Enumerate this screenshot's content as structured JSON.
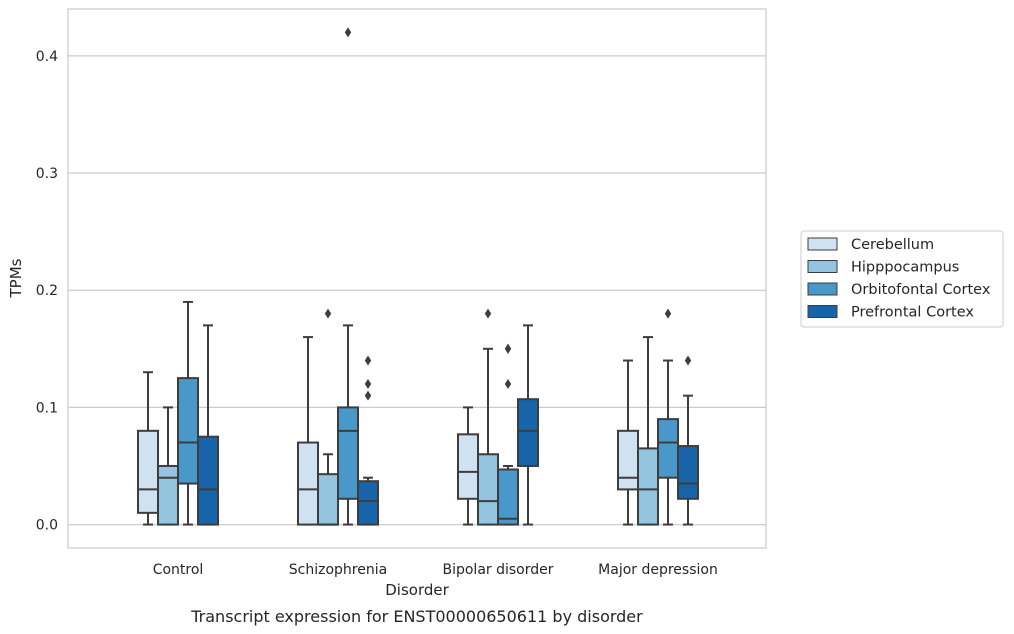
{
  "caption": "Transcript expression for ENST00000650611 by disorder",
  "chart_data": {
    "type": "box",
    "xlabel": "Disorder",
    "ylabel": "TPMs",
    "ylim": [
      -0.02,
      0.44
    ],
    "yticks": [
      0.0,
      0.1,
      0.2,
      0.3,
      0.4
    ],
    "ytick_labels": [
      "0.0",
      "0.1",
      "0.2",
      "0.3",
      "0.4"
    ],
    "grid": "horizontal",
    "legend_position": "right",
    "categories": [
      "Control",
      "Schizophrenia",
      "Bipolar disorder",
      "Major depression"
    ],
    "series": [
      {
        "name": "Cerebellum",
        "color": "#d0e1f2",
        "boxes": [
          {
            "whislo": 0.0,
            "q1": 0.01,
            "med": 0.03,
            "q3": 0.08,
            "whishi": 0.13,
            "fliers": []
          },
          {
            "whislo": 0.0,
            "q1": 0.0,
            "med": 0.03,
            "q3": 0.07,
            "whishi": 0.16,
            "fliers": []
          },
          {
            "whislo": 0.0,
            "q1": 0.022,
            "med": 0.045,
            "q3": 0.077,
            "whishi": 0.1,
            "fliers": []
          },
          {
            "whislo": 0.0,
            "q1": 0.03,
            "med": 0.04,
            "q3": 0.08,
            "whishi": 0.14,
            "fliers": []
          }
        ]
      },
      {
        "name": "Hipppocampus",
        "color": "#94c4df",
        "boxes": [
          {
            "whislo": 0.0,
            "q1": 0.0,
            "med": 0.04,
            "q3": 0.05,
            "whishi": 0.1,
            "fliers": []
          },
          {
            "whislo": 0.0,
            "q1": 0.0,
            "med": 0.0,
            "q3": 0.043,
            "whishi": 0.06,
            "fliers": [
              0.18
            ]
          },
          {
            "whislo": 0.0,
            "q1": 0.0,
            "med": 0.02,
            "q3": 0.06,
            "whishi": 0.15,
            "fliers": [
              0.18
            ]
          },
          {
            "whislo": 0.0,
            "q1": 0.0,
            "med": 0.03,
            "q3": 0.065,
            "whishi": 0.16,
            "fliers": []
          }
        ]
      },
      {
        "name": "Orbitofontal Cortex",
        "color": "#4a98c9",
        "boxes": [
          {
            "whislo": 0.0,
            "q1": 0.035,
            "med": 0.07,
            "q3": 0.125,
            "whishi": 0.19,
            "fliers": []
          },
          {
            "whislo": 0.0,
            "q1": 0.022,
            "med": 0.08,
            "q3": 0.1,
            "whishi": 0.17,
            "fliers": [
              0.42
            ]
          },
          {
            "whislo": 0.0,
            "q1": 0.0,
            "med": 0.005,
            "q3": 0.047,
            "whishi": 0.05,
            "fliers": [
              0.12,
              0.15,
              0.15
            ]
          },
          {
            "whislo": 0.0,
            "q1": 0.04,
            "med": 0.07,
            "q3": 0.09,
            "whishi": 0.14,
            "fliers": [
              0.18
            ]
          }
        ]
      },
      {
        "name": "Prefrontal Cortex",
        "color": "#1764ab",
        "boxes": [
          {
            "whislo": 0.0,
            "q1": 0.0,
            "med": 0.03,
            "q3": 0.075,
            "whishi": 0.17,
            "fliers": []
          },
          {
            "whislo": 0.0,
            "q1": 0.0,
            "med": 0.02,
            "q3": 0.037,
            "whishi": 0.04,
            "fliers": [
              0.11,
              0.12,
              0.14
            ]
          },
          {
            "whislo": 0.0,
            "q1": 0.05,
            "med": 0.08,
            "q3": 0.107,
            "whishi": 0.17,
            "fliers": []
          },
          {
            "whislo": 0.0,
            "q1": 0.022,
            "med": 0.035,
            "q3": 0.067,
            "whishi": 0.11,
            "fliers": [
              0.14
            ]
          }
        ]
      }
    ]
  }
}
